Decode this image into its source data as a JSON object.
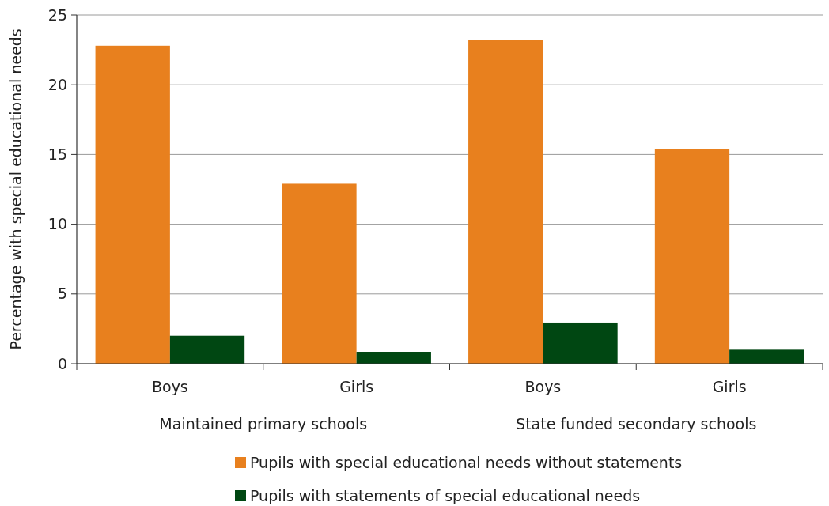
{
  "chart_data": {
    "type": "bar",
    "ylabel": "Percentage with special educational needs",
    "categories": [
      "Boys",
      "Girls",
      "Boys",
      "Girls"
    ],
    "series": [
      {
        "name": "Pupils with special educational needs without statements",
        "color": "#e8801e",
        "values": [
          22.8,
          12.9,
          23.2,
          15.4
        ]
      },
      {
        "name": "Pupils with statements of special educational needs",
        "color": "#004712",
        "values": [
          2.0,
          0.85,
          2.95,
          1.0
        ]
      }
    ],
    "ylim": [
      0,
      25
    ],
    "yticks": [
      0,
      5,
      10,
      15,
      20,
      25
    ],
    "grid": "y",
    "legend": "bottom",
    "annotations": [
      "Maintained primary schools",
      "State funded secondary schools"
    ]
  }
}
